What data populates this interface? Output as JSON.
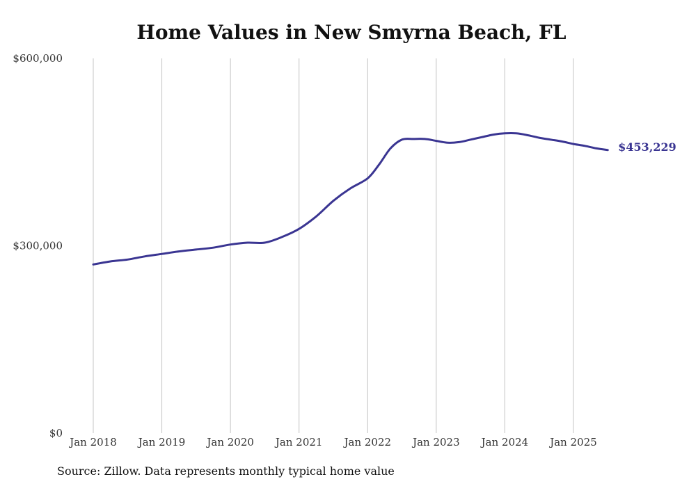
{
  "chart_data": {
    "type": "line",
    "title": "Home Values in New Smyrna Beach, FL",
    "xlabel": "",
    "ylabel": "",
    "ylim": [
      0,
      600000
    ],
    "y_ticks": [
      "$0",
      "$300,000",
      "$600,000"
    ],
    "y_tick_values": [
      0,
      300000,
      600000
    ],
    "x_ticks": [
      "Jan 2018",
      "Jan 2019",
      "Jan 2020",
      "Jan 2021",
      "Jan 2022",
      "Jan 2023",
      "Jan 2024",
      "Jan 2025"
    ],
    "x_tick_values": [
      "2018-01",
      "2019-01",
      "2020-01",
      "2021-01",
      "2022-01",
      "2023-01",
      "2024-01",
      "2025-01"
    ],
    "grid": "vertical",
    "line_color": "#3a3592",
    "end_label": "$453,229",
    "series": [
      {
        "x": [
          "2018-01",
          "2018-04",
          "2018-07",
          "2018-10",
          "2019-01",
          "2019-04",
          "2019-07",
          "2019-10",
          "2020-01",
          "2020-04",
          "2020-07",
          "2020-10",
          "2021-01",
          "2021-04",
          "2021-07",
          "2021-10",
          "2022-01",
          "2022-03",
          "2022-05",
          "2022-07",
          "2022-09",
          "2022-11",
          "2023-01",
          "2023-03",
          "2023-05",
          "2023-07",
          "2023-09",
          "2023-11",
          "2024-01",
          "2024-03",
          "2024-05",
          "2024-07",
          "2024-09",
          "2024-11",
          "2025-01",
          "2025-03",
          "2025-05",
          "2025-07"
        ],
        "values": [
          270000,
          275000,
          278000,
          283000,
          287000,
          291000,
          294000,
          297000,
          302000,
          305000,
          305000,
          314000,
          327000,
          347000,
          372000,
          392000,
          408000,
          430000,
          456000,
          470000,
          471000,
          471000,
          468000,
          465000,
          466000,
          470000,
          474000,
          478000,
          480000,
          480000,
          477000,
          473000,
          470000,
          467000,
          463000,
          460000,
          456000,
          453229
        ]
      }
    ]
  },
  "footer": {
    "source": "Source: Zillow. Data represents monthly typical home value"
  }
}
